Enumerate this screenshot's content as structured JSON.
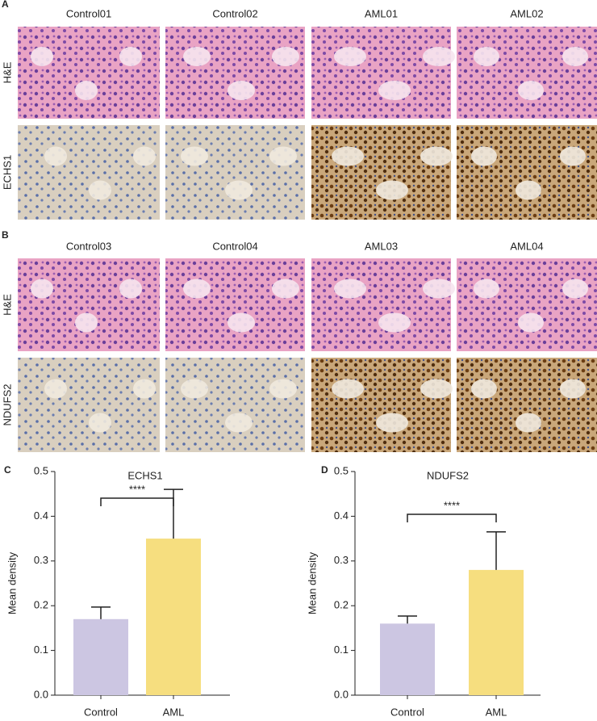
{
  "panels": [
    {
      "label": "A",
      "columns": [
        "Control01",
        "Control02",
        "AML01",
        "AML02"
      ],
      "rows": [
        "H&E",
        "ECHS1"
      ]
    },
    {
      "label": "B",
      "columns": [
        "Control03",
        "Control04",
        "AML03",
        "AML04"
      ],
      "rows": [
        "H&E",
        "NDUFS2"
      ]
    }
  ],
  "chart_data": [
    {
      "label": "C",
      "type": "bar",
      "title": "ECHS1",
      "ylabel": "Mean density",
      "categories": [
        "Control",
        "AML"
      ],
      "values": [
        0.17,
        0.35
      ],
      "errors": [
        0.027,
        0.11
      ],
      "colors": [
        "#ccc6e2",
        "#f6de7f"
      ],
      "ylim": [
        0,
        0.5
      ],
      "yticks": [
        {
          "value": 0,
          "label": "0.0"
        },
        0.1,
        0.2,
        0.3,
        0.4,
        0.5
      ],
      "annotation": "****"
    },
    {
      "label": "D",
      "type": "bar",
      "title": "NDUFS2",
      "ylabel": "Mean density",
      "categories": [
        "Control",
        "AML"
      ],
      "values": [
        0.16,
        0.28
      ],
      "errors": [
        0.017,
        0.085
      ],
      "colors": [
        "#ccc6e2",
        "#f6de7f"
      ],
      "ylim": [
        0,
        0.5
      ],
      "yticks": [
        {
          "value": 0,
          "label": "0.0"
        },
        0.1,
        0.2,
        0.3,
        0.4,
        0.5
      ],
      "annotation": "****"
    }
  ]
}
